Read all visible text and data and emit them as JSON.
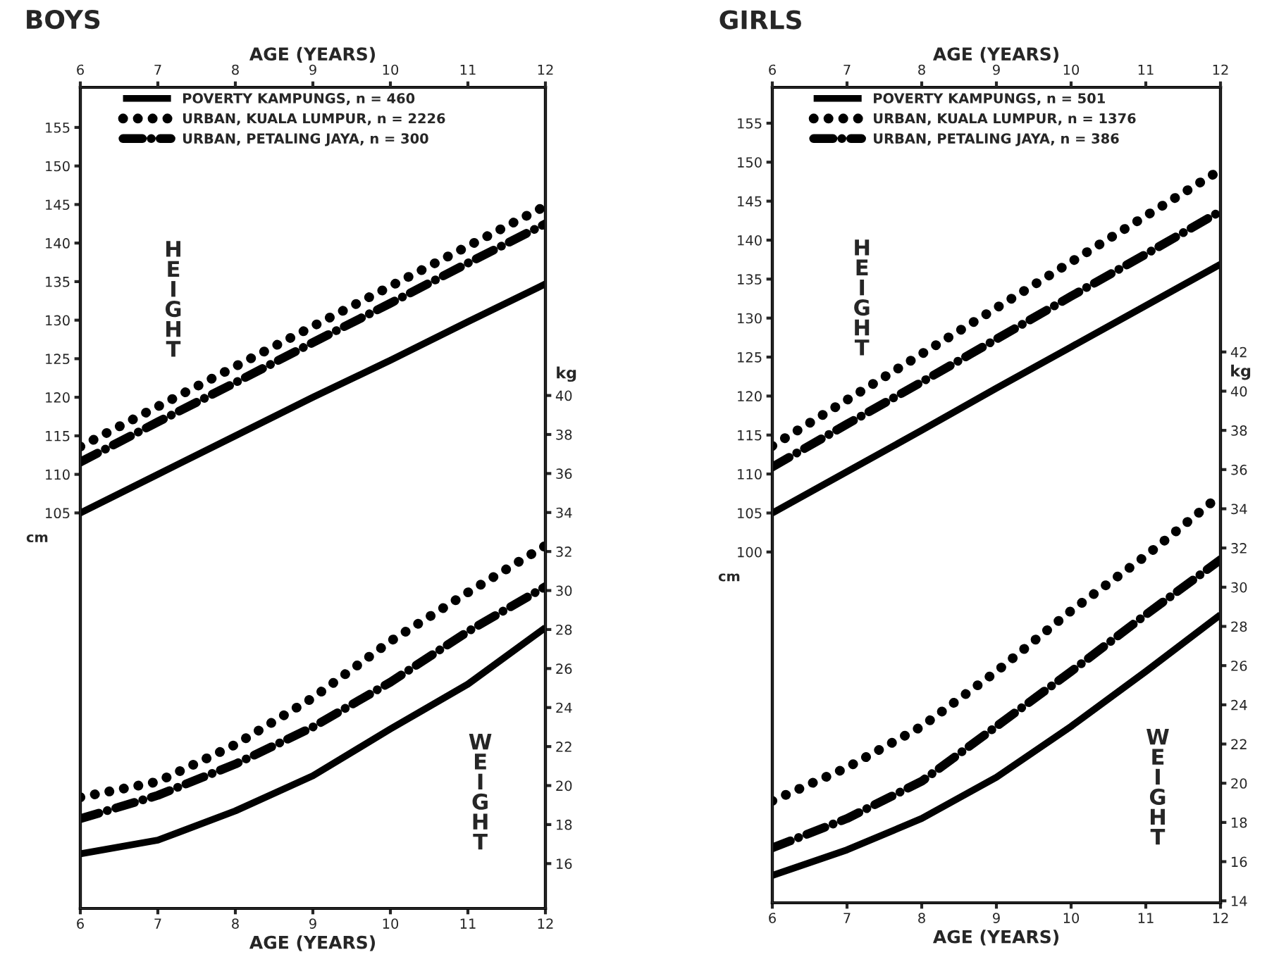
{
  "chart_data": [
    {
      "type": "line",
      "title": "BOYS",
      "xlabel": "AGE (YEARS)",
      "x2label": "AGE (YEARS)",
      "ylabel": "cm",
      "y2label": "kg",
      "x": [
        6,
        7,
        8,
        9,
        10,
        11,
        12
      ],
      "xlim": [
        6,
        12
      ],
      "xticks": [
        6,
        7,
        8,
        9,
        10,
        11,
        12
      ],
      "x2lim": [
        6,
        12
      ],
      "x2ticks": [
        6,
        7,
        8,
        9,
        10,
        11,
        12
      ],
      "ylim": [
        53.7,
        160.2
      ],
      "yticks": [
        105,
        110,
        115,
        120,
        125,
        130,
        135,
        140,
        145,
        150,
        155
      ],
      "y2lim": [
        13.7,
        55.8
      ],
      "y2ticks": [
        16,
        18,
        20,
        22,
        24,
        26,
        28,
        30,
        32,
        34,
        36,
        38,
        40
      ],
      "legend": "top left",
      "marker": "none",
      "grid": false,
      "annotations": [
        "HEIGHT",
        "WEIGHT"
      ],
      "series": [
        {
          "name": "POVERTY KAMPUNGS, n = 460",
          "color": "#000000",
          "line_style": "solid",
          "values": [
            105,
            110,
            115,
            120,
            124.8,
            129.8,
            134.7
          ]
        },
        {
          "name": "URBAN, KUALA LUMPUR, n = 2226",
          "color": "#000000",
          "line_style": "dotted",
          "values": [
            113.6,
            118.8,
            124.0,
            129.2,
            134.4,
            139.6,
            144.8
          ]
        },
        {
          "name": "URBAN, PETALING JAYA, n = 300",
          "color": "#000000",
          "line_style": "dashed",
          "values": [
            111.6,
            116.8,
            121.9,
            127.1,
            132.2,
            137.4,
            142.5
          ]
        },
        {
          "color": "#000000",
          "line_style": "solid",
          "axis": "y2",
          "values": [
            16.5,
            17.2,
            18.7,
            20.5,
            22.9,
            25.2,
            28.1
          ]
        },
        {
          "color": "#000000",
          "line_style": "dotted",
          "axis": "y2",
          "values": [
            19.4,
            20.2,
            22.1,
            24.5,
            27.4,
            29.9,
            32.3
          ]
        },
        {
          "color": "#000000",
          "line_style": "dashed",
          "axis": "y2",
          "values": [
            18.3,
            19.5,
            21.1,
            23.0,
            25.3,
            27.9,
            30.2
          ]
        }
      ]
    },
    {
      "type": "line",
      "title": "GIRLS",
      "xlabel": "AGE (YEARS)",
      "x2label": "AGE (YEARS)",
      "ylabel": "cm",
      "y2label": "kg",
      "x": [
        6,
        7,
        8,
        9,
        10,
        11,
        12
      ],
      "xlim": [
        6,
        12
      ],
      "xticks": [
        6,
        7,
        8,
        9,
        10,
        11,
        12
      ],
      "x2lim": [
        6,
        12
      ],
      "x2ticks": [
        6,
        7,
        8,
        9,
        10,
        11,
        12
      ],
      "ylim": [
        55,
        159.6
      ],
      "yticks": [
        100,
        105,
        110,
        115,
        120,
        125,
        130,
        135,
        140,
        145,
        150,
        155
      ],
      "y2lim": [
        13.9,
        55.5
      ],
      "y2ticks": [
        14,
        16,
        18,
        20,
        22,
        24,
        26,
        28,
        30,
        32,
        34,
        36,
        38,
        40,
        42
      ],
      "legend": "top left",
      "marker": "none",
      "grid": false,
      "annotations": [
        "HEIGHT",
        "WEIGHT"
      ],
      "series": [
        {
          "name": "POVERTY KAMPUNGS, n = 501",
          "color": "#000000",
          "line_style": "solid",
          "values": [
            105,
            110.3,
            115.6,
            121.0,
            126.3,
            131.6,
            136.9
          ]
        },
        {
          "name": "URBAN, KUALA LUMPUR, n = 1376",
          "color": "#000000",
          "line_style": "dotted",
          "values": [
            113.6,
            119.5,
            125.4,
            131.3,
            137.2,
            143.1,
            149.0
          ]
        },
        {
          "name": "URBAN, PETALING JAYA, n = 386",
          "color": "#000000",
          "line_style": "dashed",
          "values": [
            110.9,
            116.4,
            121.8,
            127.3,
            132.8,
            138.2,
            143.7
          ]
        },
        {
          "color": "#000000",
          "line_style": "solid",
          "axis": "y2",
          "values": [
            15.3,
            16.6,
            18.2,
            20.3,
            22.9,
            25.7,
            28.6
          ]
        },
        {
          "color": "#000000",
          "line_style": "dotted",
          "axis": "y2",
          "values": [
            19.1,
            20.8,
            22.9,
            25.7,
            28.8,
            31.6,
            34.7
          ]
        },
        {
          "color": "#000000",
          "line_style": "dashed",
          "axis": "y2",
          "values": [
            16.7,
            18.2,
            20.1,
            22.9,
            25.7,
            28.6,
            31.4
          ]
        }
      ]
    }
  ]
}
